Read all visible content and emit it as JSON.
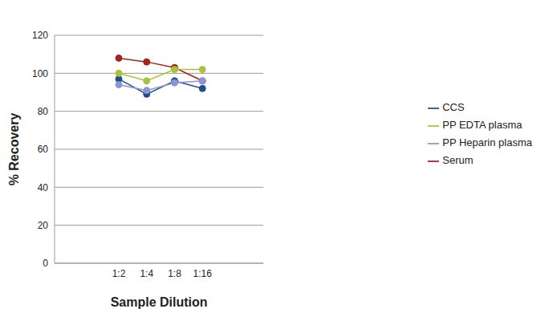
{
  "chart_data": {
    "type": "line",
    "x_label": "Sample Dilution",
    "y_label": "% Recovery",
    "categories": [
      "1:2",
      "1:4",
      "1:8",
      "1:16"
    ],
    "series": [
      {
        "name": "CCS",
        "color": "#1f4e8c",
        "values": [
          97,
          89,
          96,
          92
        ]
      },
      {
        "name": "Serum",
        "color": "#a3231f",
        "values": [
          108,
          106,
          103,
          96
        ]
      },
      {
        "name": "PP EDTA plasma",
        "color": "#a9c23a",
        "values": [
          100,
          96,
          102,
          102
        ]
      },
      {
        "name": "PP Heparin plasma",
        "color": "#8e95d4",
        "values": [
          94,
          91,
          95,
          96
        ]
      }
    ],
    "ylim": [
      0,
      120
    ],
    "yticks": [
      0,
      20,
      40,
      60,
      80,
      100,
      120
    ],
    "grid": true,
    "legend": "right",
    "marker": "circle"
  }
}
